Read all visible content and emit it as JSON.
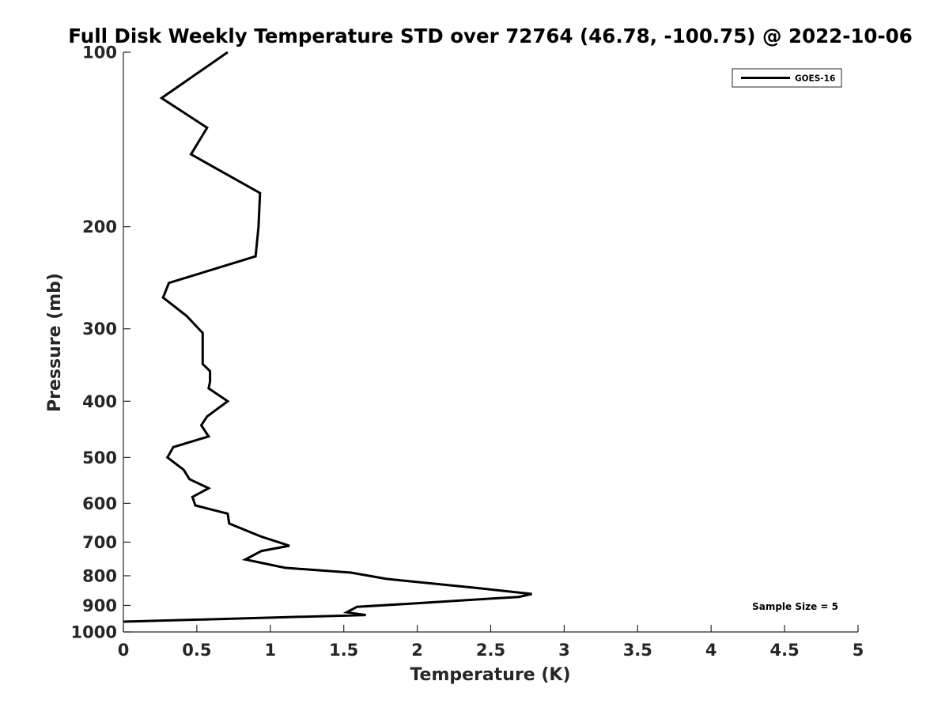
{
  "chart_data": {
    "type": "line",
    "title": "Full Disk Weekly Temperature STD over 72764 (46.78, -100.75) @ 2022-10-06",
    "xlabel": "Temperature (K)",
    "ylabel": "Pressure (mb)",
    "xlim": [
      0,
      5
    ],
    "ylim": [
      100,
      1000
    ],
    "y_scale": "log",
    "y_reversed": true,
    "x_ticks": [
      0,
      0.5,
      1,
      1.5,
      2,
      2.5,
      3,
      3.5,
      4,
      4.5,
      5
    ],
    "x_tick_labels": [
      "0",
      "0.5",
      "1",
      "1.5",
      "2",
      "2.5",
      "3",
      "3.5",
      "4",
      "4.5",
      "5"
    ],
    "y_ticks": [
      100,
      200,
      300,
      400,
      500,
      600,
      700,
      800,
      900,
      1000
    ],
    "y_tick_labels": [
      "100",
      "200",
      "300",
      "400",
      "500",
      "600",
      "700",
      "800",
      "900",
      "1000"
    ],
    "grid": false,
    "legend_position": "top-right",
    "annotation": "Sample Size = 5",
    "colors": {
      "line": "#000000",
      "axis": "#262626",
      "text": "#262626"
    },
    "series": [
      {
        "name": "GOES-16",
        "x": [
          0.71,
          0.26,
          0.57,
          0.46,
          0.93,
          0.92,
          0.9,
          0.31,
          0.27,
          0.43,
          0.54,
          0.54,
          0.54,
          0.59,
          0.59,
          0.58,
          0.71,
          0.57,
          0.53,
          0.58,
          0.34,
          0.3,
          0.41,
          0.45,
          0.58,
          0.47,
          0.49,
          0.71,
          0.72,
          0.94,
          1.13,
          0.94,
          0.83,
          1.1,
          1.55,
          1.79,
          2.41,
          2.78,
          2.69,
          1.91,
          1.59,
          1.52,
          1.65,
          0.0
        ],
        "y": [
          100,
          120,
          135,
          150,
          175,
          200,
          225,
          250,
          265,
          285,
          305,
          325,
          345,
          355,
          370,
          380,
          400,
          425,
          440,
          460,
          480,
          500,
          525,
          545,
          565,
          585,
          605,
          625,
          650,
          685,
          710,
          725,
          750,
          775,
          790,
          810,
          840,
          860,
          870,
          895,
          905,
          925,
          935,
          960
        ]
      }
    ]
  }
}
